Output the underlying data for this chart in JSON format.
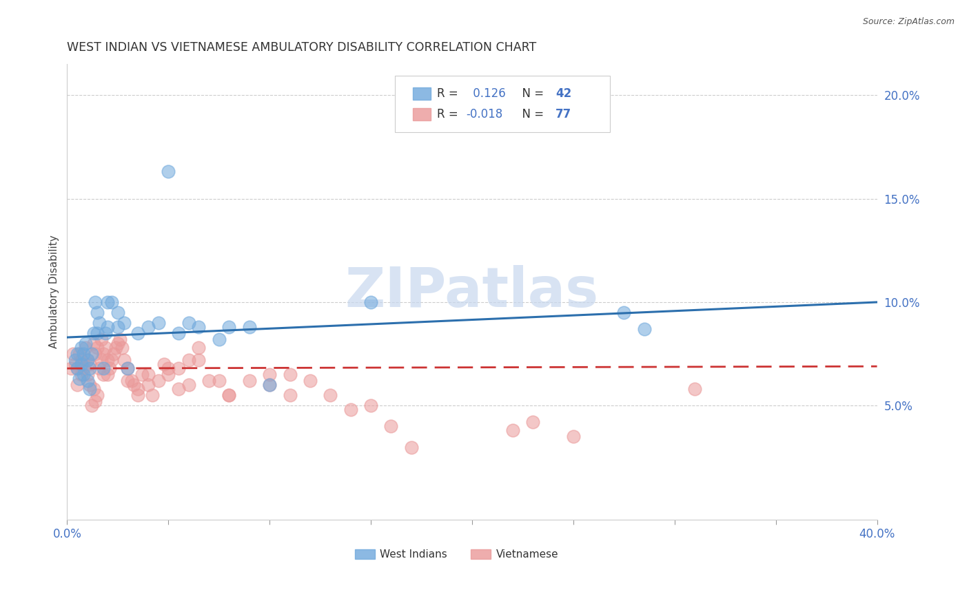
{
  "title": "WEST INDIAN VS VIETNAMESE AMBULATORY DISABILITY CORRELATION CHART",
  "source": "Source: ZipAtlas.com",
  "ylabel": "Ambulatory Disability",
  "xlim": [
    0.0,
    0.4
  ],
  "ylim": [
    -0.005,
    0.215
  ],
  "watermark": "ZIPatlas",
  "wi_color": "#6fa8dc",
  "vn_color": "#ea9999",
  "wi_line_color": "#2c6fad",
  "vn_line_color": "#cc3333",
  "legend_wi": "R =  0.126   N = 42",
  "legend_vn": "R = -0.018   N = 77",
  "west_indians_x": [
    0.004,
    0.005,
    0.005,
    0.006,
    0.007,
    0.007,
    0.008,
    0.008,
    0.009,
    0.01,
    0.01,
    0.011,
    0.011,
    0.012,
    0.013,
    0.014,
    0.015,
    0.015,
    0.016,
    0.018,
    0.019,
    0.02,
    0.022,
    0.025,
    0.028,
    0.03,
    0.035,
    0.04,
    0.045,
    0.05,
    0.055,
    0.06,
    0.065,
    0.075,
    0.08,
    0.09,
    0.1,
    0.15,
    0.02,
    0.025,
    0.275,
    0.285
  ],
  "west_indians_y": [
    0.072,
    0.068,
    0.075,
    0.063,
    0.07,
    0.078,
    0.065,
    0.075,
    0.08,
    0.062,
    0.072,
    0.058,
    0.068,
    0.075,
    0.085,
    0.1,
    0.095,
    0.085,
    0.09,
    0.068,
    0.085,
    0.088,
    0.1,
    0.095,
    0.09,
    0.068,
    0.085,
    0.088,
    0.09,
    0.163,
    0.085,
    0.09,
    0.088,
    0.082,
    0.088,
    0.088,
    0.06,
    0.1,
    0.1,
    0.088,
    0.095,
    0.087
  ],
  "vietnamese_x": [
    0.002,
    0.003,
    0.004,
    0.005,
    0.005,
    0.006,
    0.007,
    0.007,
    0.008,
    0.008,
    0.009,
    0.01,
    0.01,
    0.011,
    0.011,
    0.012,
    0.013,
    0.013,
    0.014,
    0.014,
    0.015,
    0.015,
    0.016,
    0.017,
    0.017,
    0.018,
    0.018,
    0.019,
    0.02,
    0.02,
    0.021,
    0.022,
    0.023,
    0.024,
    0.025,
    0.026,
    0.027,
    0.028,
    0.03,
    0.032,
    0.033,
    0.035,
    0.037,
    0.04,
    0.042,
    0.045,
    0.048,
    0.05,
    0.055,
    0.06,
    0.065,
    0.07,
    0.08,
    0.09,
    0.1,
    0.11,
    0.13,
    0.15,
    0.16,
    0.03,
    0.035,
    0.04,
    0.05,
    0.055,
    0.06,
    0.065,
    0.075,
    0.08,
    0.1,
    0.11,
    0.12,
    0.14,
    0.17,
    0.22,
    0.23,
    0.25,
    0.31
  ],
  "vietnamese_y": [
    0.068,
    0.075,
    0.07,
    0.06,
    0.068,
    0.075,
    0.072,
    0.065,
    0.07,
    0.068,
    0.078,
    0.072,
    0.065,
    0.06,
    0.07,
    0.05,
    0.058,
    0.08,
    0.052,
    0.075,
    0.055,
    0.078,
    0.068,
    0.072,
    0.082,
    0.075,
    0.065,
    0.078,
    0.072,
    0.065,
    0.068,
    0.072,
    0.075,
    0.078,
    0.08,
    0.082,
    0.078,
    0.072,
    0.068,
    0.062,
    0.06,
    0.058,
    0.065,
    0.06,
    0.055,
    0.062,
    0.07,
    0.065,
    0.068,
    0.072,
    0.078,
    0.062,
    0.055,
    0.062,
    0.06,
    0.065,
    0.055,
    0.05,
    0.04,
    0.062,
    0.055,
    0.065,
    0.068,
    0.058,
    0.06,
    0.072,
    0.062,
    0.055,
    0.065,
    0.055,
    0.062,
    0.048,
    0.03,
    0.038,
    0.042,
    0.035,
    0.058
  ]
}
